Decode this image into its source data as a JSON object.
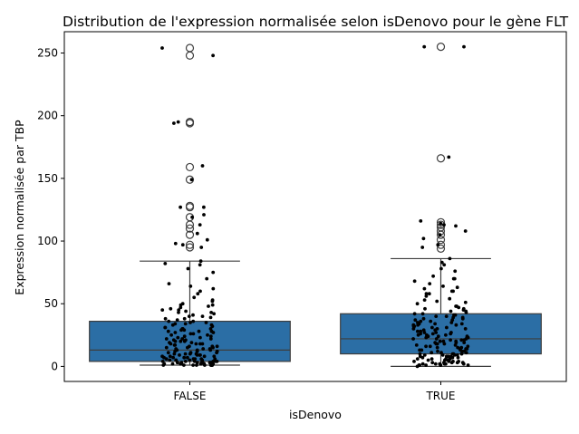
{
  "chart_data": {
    "type": "box",
    "title": "Distribution de l'expression normalisée selon isDenovo pour le gène FLT",
    "xlabel": "isDenovo",
    "ylabel": "Expression normalisée par TBP",
    "categories": [
      "FALSE",
      "TRUE"
    ],
    "ylim": [
      -12,
      267
    ],
    "yticks": [
      0,
      50,
      100,
      150,
      200,
      250
    ],
    "grid": false,
    "box_color": "#2b6ea5",
    "point_color": "#000000",
    "boxes": [
      {
        "category": "FALSE",
        "whisker_low": 1,
        "q1": 4,
        "median": 13,
        "q3": 36,
        "whisker_high": 84,
        "outliers": [
          95,
          97,
          105,
          110,
          113,
          119,
          127,
          128,
          149,
          159,
          194,
          195,
          248,
          254
        ]
      },
      {
        "category": "TRUE",
        "whisker_low": 0,
        "q1": 10,
        "median": 22,
        "q3": 42,
        "whisker_high": 86,
        "outliers": [
          94,
          97,
          101,
          105,
          108,
          111,
          113,
          115,
          166,
          255
        ]
      }
    ],
    "jitter_points": [
      {
        "category": "FALSE",
        "values": [
          254,
          248,
          195,
          194,
          160,
          149,
          127,
          127,
          121,
          119,
          113,
          106,
          101,
          98,
          97,
          95,
          84,
          82,
          81,
          78,
          75,
          70,
          66,
          64,
          62,
          60,
          58,
          55,
          53,
          52,
          50,
          49,
          48,
          47,
          46,
          45,
          44,
          43,
          42,
          41,
          40,
          39,
          38,
          37,
          36,
          35,
          34,
          33,
          32,
          31,
          30,
          29,
          28,
          27,
          26,
          25,
          24,
          23,
          22,
          21,
          20,
          19,
          18,
          17,
          16,
          15,
          14,
          13,
          12,
          11,
          10,
          9,
          8,
          7,
          6,
          5,
          4,
          3,
          2,
          1,
          35,
          30,
          28,
          25,
          22,
          20,
          18,
          15,
          12,
          10,
          9,
          8,
          7,
          6,
          5,
          4,
          3,
          2,
          1,
          1,
          2,
          3,
          4,
          5,
          6,
          8,
          10,
          12,
          14,
          16,
          18,
          20,
          24,
          27,
          30,
          33,
          36,
          40,
          45,
          49,
          3,
          2,
          1,
          1,
          2,
          4,
          6,
          9,
          13,
          17,
          21,
          26,
          31,
          1,
          2,
          3,
          5,
          7,
          11,
          15,
          19,
          23,
          28,
          2,
          1,
          3,
          4,
          6,
          8,
          10,
          14,
          18,
          22,
          29,
          34,
          38,
          43,
          1,
          2,
          1,
          3,
          2,
          5,
          4,
          7,
          9,
          11,
          16,
          12,
          13
        ]
      },
      {
        "category": "TRUE",
        "values": [
          255,
          255,
          167,
          116,
          114,
          113,
          112,
          108,
          105,
          102,
          97,
          95,
          86,
          83,
          81,
          78,
          76,
          72,
          70,
          68,
          66,
          64,
          62,
          60,
          58,
          56,
          54,
          52,
          50,
          48,
          47,
          46,
          45,
          44,
          43,
          42,
          41,
          40,
          39,
          38,
          37,
          36,
          35,
          34,
          33,
          32,
          31,
          30,
          29,
          28,
          27,
          26,
          25,
          24,
          23,
          22,
          21,
          20,
          19,
          18,
          17,
          16,
          15,
          14,
          13,
          12,
          11,
          10,
          9,
          8,
          7,
          6,
          5,
          4,
          3,
          2,
          1,
          0,
          40,
          36,
          33,
          30,
          27,
          25,
          23,
          21,
          19,
          17,
          15,
          13,
          11,
          9,
          7,
          5,
          3,
          2,
          1,
          1,
          2,
          4,
          6,
          8,
          10,
          12,
          14,
          16,
          18,
          20,
          22,
          24,
          26,
          28,
          31,
          34,
          37,
          41,
          44,
          48,
          53,
          58,
          63,
          1,
          2,
          3,
          5,
          7,
          9,
          12,
          15,
          18,
          21,
          24,
          27,
          30,
          34,
          38,
          2,
          1,
          3,
          4,
          6,
          8,
          10,
          13,
          16,
          19,
          22,
          26,
          29,
          32,
          35,
          39,
          42,
          46,
          51,
          3,
          2,
          1,
          5,
          4,
          7,
          6,
          9,
          8,
          11,
          10,
          14,
          20,
          25,
          33,
          60,
          70
        ]
      }
    ]
  }
}
